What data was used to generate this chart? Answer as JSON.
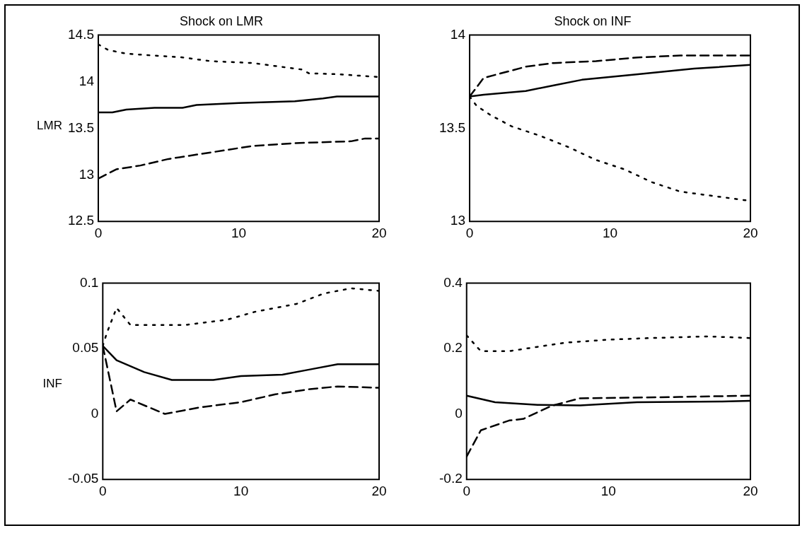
{
  "chart_data": [
    {
      "type": "line",
      "title": "Shock on LMR",
      "ylabel": "LMR",
      "xlim": [
        0,
        20
      ],
      "xticks": [
        0,
        10,
        20
      ],
      "ylim": [
        12.5,
        14.5
      ],
      "yticks": [
        12.5,
        13,
        13.5,
        14,
        14.5
      ],
      "series": [
        {
          "color": "#000000",
          "line_style": "solid",
          "x": [
            0,
            1,
            2,
            4,
            6,
            7,
            10,
            14,
            16,
            17,
            20
          ],
          "values": [
            13.67,
            13.67,
            13.7,
            13.72,
            13.72,
            13.75,
            13.77,
            13.79,
            13.82,
            13.84,
            13.84
          ]
        },
        {
          "color": "#000000",
          "line_style": "dashed",
          "x": [
            0,
            1.3,
            3,
            5,
            8,
            11,
            14,
            18,
            19,
            20
          ],
          "values": [
            12.96,
            13.06,
            13.1,
            13.17,
            13.24,
            13.31,
            13.34,
            13.36,
            13.39,
            13.39
          ]
        },
        {
          "color": "#000000",
          "line_style": "dotted",
          "x": [
            0,
            0.7,
            2,
            6,
            8,
            11,
            13,
            14.5,
            15,
            17,
            20
          ],
          "values": [
            14.4,
            14.34,
            14.3,
            14.26,
            14.22,
            14.2,
            14.16,
            14.13,
            14.09,
            14.08,
            14.05
          ]
        }
      ]
    },
    {
      "type": "line",
      "title": "Shock on INF",
      "xlim": [
        0,
        20
      ],
      "xticks": [
        0,
        10,
        20
      ],
      "ylim": [
        13,
        14
      ],
      "yticks": [
        13,
        13.5,
        14
      ],
      "series": [
        {
          "color": "#000000",
          "line_style": "solid",
          "x": [
            0,
            1,
            4,
            6,
            8,
            12,
            16,
            20
          ],
          "values": [
            13.67,
            13.68,
            13.7,
            13.73,
            13.76,
            13.79,
            13.82,
            13.84
          ]
        },
        {
          "color": "#000000",
          "line_style": "dashed",
          "x": [
            0,
            1,
            2,
            4,
            6,
            9,
            12,
            15,
            20
          ],
          "values": [
            13.67,
            13.77,
            13.79,
            13.83,
            13.85,
            13.86,
            13.88,
            13.89,
            13.89
          ]
        },
        {
          "color": "#000000",
          "line_style": "dotted",
          "x": [
            0,
            0.5,
            1.5,
            3,
            5,
            7,
            9,
            11,
            13,
            15,
            18,
            20
          ],
          "values": [
            13.67,
            13.62,
            13.57,
            13.51,
            13.46,
            13.4,
            13.33,
            13.28,
            13.21,
            13.16,
            13.13,
            13.11
          ]
        }
      ]
    },
    {
      "type": "line",
      "ylabel": "INF",
      "xlim": [
        0,
        20
      ],
      "xticks": [
        0,
        10,
        20
      ],
      "ylim": [
        -0.05,
        0.1
      ],
      "yticks": [
        -0.05,
        0,
        0.05,
        0.1
      ],
      "series": [
        {
          "color": "#000000",
          "line_style": "solid",
          "x": [
            0,
            1,
            3,
            5,
            8,
            10,
            13,
            15,
            17,
            20
          ],
          "values": [
            0.052,
            0.041,
            0.032,
            0.026,
            0.026,
            0.029,
            0.03,
            0.034,
            0.038,
            0.038
          ]
        },
        {
          "color": "#000000",
          "line_style": "dashed",
          "x": [
            0,
            1,
            2,
            4.5,
            7,
            10,
            12.5,
            15,
            17,
            20
          ],
          "values": [
            0.052,
            0.002,
            0.011,
            0,
            0.005,
            0.009,
            0.015,
            0.019,
            0.021,
            0.02
          ]
        },
        {
          "color": "#000000",
          "line_style": "dotted",
          "x": [
            0,
            0.3,
            1,
            2,
            6,
            9,
            11,
            14,
            16,
            18,
            20
          ],
          "values": [
            0.052,
            0.062,
            0.081,
            0.068,
            0.068,
            0.072,
            0.078,
            0.084,
            0.092,
            0.096,
            0.094
          ]
        }
      ]
    },
    {
      "type": "line",
      "xlim": [
        0,
        20
      ],
      "xticks": [
        0,
        10,
        20
      ],
      "ylim": [
        -0.2,
        0.4
      ],
      "yticks": [
        -0.2,
        0,
        0.2,
        0.4
      ],
      "series": [
        {
          "color": "#000000",
          "line_style": "solid",
          "x": [
            0,
            2,
            5,
            8,
            12,
            18,
            20
          ],
          "values": [
            0.056,
            0.036,
            0.028,
            0.026,
            0.036,
            0.038,
            0.04
          ]
        },
        {
          "color": "#000000",
          "line_style": "dashed",
          "x": [
            0,
            1,
            3,
            4,
            6,
            8,
            15,
            20
          ],
          "values": [
            -0.13,
            -0.05,
            -0.02,
            -0.015,
            0.025,
            0.048,
            0.052,
            0.056
          ]
        },
        {
          "color": "#000000",
          "line_style": "dotted",
          "x": [
            0,
            1,
            3,
            5,
            7,
            10,
            13,
            17,
            20
          ],
          "values": [
            0.24,
            0.192,
            0.192,
            0.205,
            0.218,
            0.227,
            0.232,
            0.237,
            0.232
          ]
        }
      ]
    }
  ]
}
